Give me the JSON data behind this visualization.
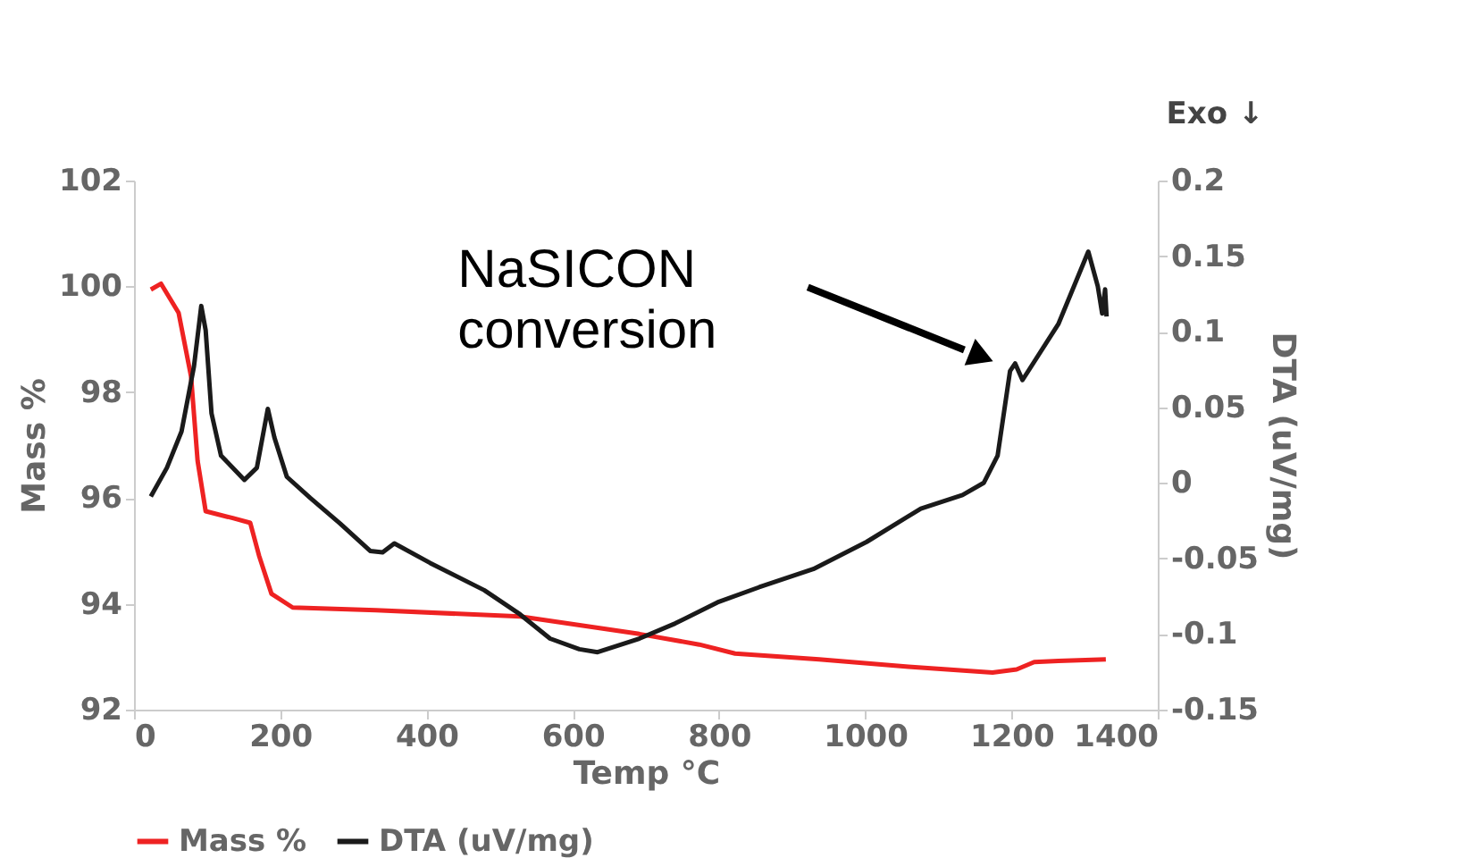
{
  "chart_data": {
    "type": "line",
    "xlabel": "Temp °C",
    "ylabel": "Mass %",
    "y2label": "DTA (uV/mg)",
    "xlim": [
      0,
      1400
    ],
    "xticks": [
      0,
      200,
      400,
      600,
      800,
      1000,
      1200,
      1400
    ],
    "ylim": [
      92,
      102
    ],
    "yticks": [
      92,
      94,
      96,
      98,
      100,
      102
    ],
    "y2lim": [
      -0.15,
      0.2
    ],
    "y2ticks": [
      -0.15,
      -0.1,
      -0.05,
      0,
      0.05,
      0.1,
      0.15,
      0.2
    ],
    "grid": false,
    "legend": "bottom",
    "line_style": "solid",
    "annotations": [
      "Exo ↓",
      "NaSICON conversion"
    ],
    "series": [
      {
        "name": "Mass %",
        "color": "#ee2222",
        "axis": "y",
        "x": [
          23,
          37,
          61,
          78,
          87,
          98,
          135,
          159,
          171,
          188,
          217,
          331,
          528,
          691,
          773,
          822,
          937,
          1059,
          1174,
          1207,
          1231,
          1264,
          1329
        ],
        "values": [
          99.94,
          100.05,
          99.5,
          98.3,
          96.7,
          95.75,
          95.62,
          95.53,
          94.91,
          94.19,
          93.93,
          93.88,
          93.76,
          93.43,
          93.23,
          93.06,
          92.95,
          92.81,
          92.7,
          92.76,
          92.9,
          92.92,
          92.95
        ]
      },
      {
        "name": "DTA (uV/mg)",
        "color": "#1a1a1a",
        "axis": "y2",
        "x": [
          23,
          45,
          65,
          82,
          92,
          98,
          106,
          119,
          151,
          168,
          183,
          192,
          209,
          241,
          282,
          323,
          340,
          356,
          405,
          479,
          528,
          569,
          609,
          634,
          691,
          740,
          798,
          855,
          929,
          1002,
          1076,
          1133,
          1162,
          1181,
          1198,
          1205,
          1215,
          1264,
          1305,
          1318,
          1324,
          1328,
          1330
        ],
        "values": [
          -0.009,
          0.01,
          0.034,
          0.077,
          0.117,
          0.101,
          0.046,
          0.018,
          0.002,
          0.01,
          0.049,
          0.03,
          0.004,
          -0.01,
          -0.027,
          -0.045,
          -0.046,
          -0.04,
          -0.053,
          -0.071,
          -0.087,
          -0.103,
          -0.11,
          -0.112,
          -0.103,
          -0.093,
          -0.079,
          -0.069,
          -0.057,
          -0.039,
          -0.017,
          -0.008,
          0.0,
          0.018,
          0.074,
          0.079,
          0.068,
          0.105,
          0.153,
          0.13,
          0.112,
          0.128,
          0.11
        ]
      }
    ]
  }
}
